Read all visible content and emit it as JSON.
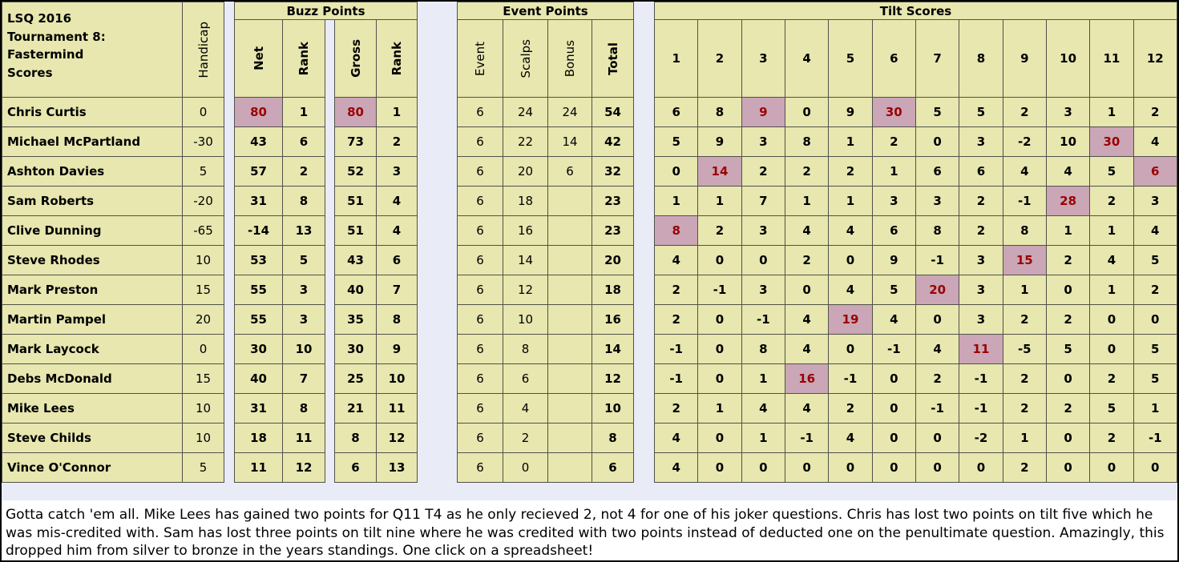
{
  "title": "LSQ 2016\nTournament 8:\nFastermind\nScores",
  "headers": {
    "handicap": "Handicap",
    "buzz": {
      "label": "Buzz Points",
      "net": "Net",
      "rank": "Rank",
      "gross": "Gross",
      "rank2": "Rank"
    },
    "event": {
      "label": "Event Points",
      "event": "Event",
      "scalps": "Scalps",
      "bonus": "Bonus",
      "total": "Total"
    },
    "tilt": {
      "label": "Tilt Scores",
      "cols": [
        "1",
        "2",
        "3",
        "4",
        "5",
        "6",
        "7",
        "8",
        "9",
        "10",
        "11",
        "12"
      ]
    }
  },
  "colors": {
    "cell_bg": "#e7e7af",
    "highlight_bg": "#caa6b6",
    "highlight_text": "#9b0000",
    "gap_bg": "#e9ecf6",
    "border": "#51514b"
  },
  "players": [
    {
      "name": "Chris Curtis",
      "handicap": "0",
      "buzz": [
        "80",
        "1",
        "80",
        "1"
      ],
      "buzz_hl": [
        0,
        2
      ],
      "event": [
        "6",
        "24",
        "24",
        "54"
      ],
      "tilt": [
        "6",
        "8",
        "9",
        "0",
        "9",
        "30",
        "5",
        "5",
        "2",
        "3",
        "1",
        "2"
      ],
      "tilt_hl": [
        2,
        5
      ]
    },
    {
      "name": "Michael McPartland",
      "handicap": "-30",
      "buzz": [
        "43",
        "6",
        "73",
        "2"
      ],
      "buzz_hl": [],
      "event": [
        "6",
        "22",
        "14",
        "42"
      ],
      "tilt": [
        "5",
        "9",
        "3",
        "8",
        "1",
        "2",
        "0",
        "3",
        "-2",
        "10",
        "30",
        "4"
      ],
      "tilt_hl": [
        10
      ]
    },
    {
      "name": "Ashton Davies",
      "handicap": "5",
      "buzz": [
        "57",
        "2",
        "52",
        "3"
      ],
      "buzz_hl": [],
      "event": [
        "6",
        "20",
        "6",
        "32"
      ],
      "tilt": [
        "0",
        "14",
        "2",
        "2",
        "2",
        "1",
        "6",
        "6",
        "4",
        "4",
        "5",
        "6"
      ],
      "tilt_hl": [
        1,
        11
      ]
    },
    {
      "name": "Sam Roberts",
      "handicap": "-20",
      "buzz": [
        "31",
        "8",
        "51",
        "4"
      ],
      "buzz_hl": [],
      "event": [
        "6",
        "18",
        "",
        "23"
      ],
      "tilt": [
        "1",
        "1",
        "7",
        "1",
        "1",
        "3",
        "3",
        "2",
        "-1",
        "28",
        "2",
        "3"
      ],
      "tilt_hl": [
        9
      ]
    },
    {
      "name": "Clive Dunning",
      "handicap": "-65",
      "buzz": [
        "-14",
        "13",
        "51",
        "4"
      ],
      "buzz_hl": [],
      "event": [
        "6",
        "16",
        "",
        "23"
      ],
      "tilt": [
        "8",
        "2",
        "3",
        "4",
        "4",
        "6",
        "8",
        "2",
        "8",
        "1",
        "1",
        "4"
      ],
      "tilt_hl": [
        0
      ]
    },
    {
      "name": "Steve Rhodes",
      "handicap": "10",
      "buzz": [
        "53",
        "5",
        "43",
        "6"
      ],
      "buzz_hl": [],
      "event": [
        "6",
        "14",
        "",
        "20"
      ],
      "tilt": [
        "4",
        "0",
        "0",
        "2",
        "0",
        "9",
        "-1",
        "3",
        "15",
        "2",
        "4",
        "5"
      ],
      "tilt_hl": [
        8
      ]
    },
    {
      "name": "Mark Preston",
      "handicap": "15",
      "buzz": [
        "55",
        "3",
        "40",
        "7"
      ],
      "buzz_hl": [],
      "event": [
        "6",
        "12",
        "",
        "18"
      ],
      "tilt": [
        "2",
        "-1",
        "3",
        "0",
        "4",
        "5",
        "20",
        "3",
        "1",
        "0",
        "1",
        "2"
      ],
      "tilt_hl": [
        6
      ]
    },
    {
      "name": "Martin Pampel",
      "handicap": "20",
      "buzz": [
        "55",
        "3",
        "35",
        "8"
      ],
      "buzz_hl": [],
      "event": [
        "6",
        "10",
        "",
        "16"
      ],
      "tilt": [
        "2",
        "0",
        "-1",
        "4",
        "19",
        "4",
        "0",
        "3",
        "2",
        "2",
        "0",
        "0"
      ],
      "tilt_hl": [
        4
      ]
    },
    {
      "name": "Mark Laycock",
      "handicap": "0",
      "buzz": [
        "30",
        "10",
        "30",
        "9"
      ],
      "buzz_hl": [],
      "event": [
        "6",
        "8",
        "",
        "14"
      ],
      "tilt": [
        "-1",
        "0",
        "8",
        "4",
        "0",
        "-1",
        "4",
        "11",
        "-5",
        "5",
        "0",
        "5"
      ],
      "tilt_hl": [
        7
      ]
    },
    {
      "name": "Debs McDonald",
      "handicap": "15",
      "buzz": [
        "40",
        "7",
        "25",
        "10"
      ],
      "buzz_hl": [],
      "event": [
        "6",
        "6",
        "",
        "12"
      ],
      "tilt": [
        "-1",
        "0",
        "1",
        "16",
        "-1",
        "0",
        "2",
        "-1",
        "2",
        "0",
        "2",
        "5"
      ],
      "tilt_hl": [
        3
      ]
    },
    {
      "name": "Mike Lees",
      "handicap": "10",
      "buzz": [
        "31",
        "8",
        "21",
        "11"
      ],
      "buzz_hl": [],
      "event": [
        "6",
        "4",
        "",
        "10"
      ],
      "tilt": [
        "2",
        "1",
        "4",
        "4",
        "2",
        "0",
        "-1",
        "-1",
        "2",
        "2",
        "5",
        "1"
      ],
      "tilt_hl": []
    },
    {
      "name": "Steve Childs",
      "handicap": "10",
      "buzz": [
        "18",
        "11",
        "8",
        "12"
      ],
      "buzz_hl": [],
      "event": [
        "6",
        "2",
        "",
        "8"
      ],
      "tilt": [
        "4",
        "0",
        "1",
        "-1",
        "4",
        "0",
        "0",
        "-2",
        "1",
        "0",
        "2",
        "-1"
      ],
      "tilt_hl": []
    },
    {
      "name": "Vince O'Connor",
      "handicap": "5",
      "buzz": [
        "11",
        "12",
        "6",
        "13"
      ],
      "buzz_hl": [],
      "event": [
        "6",
        "0",
        "",
        "6"
      ],
      "tilt": [
        "4",
        "0",
        "0",
        "0",
        "0",
        "0",
        "0",
        "0",
        "2",
        "0",
        "0",
        "0"
      ],
      "tilt_hl": []
    }
  ],
  "footer": "Gotta catch 'em all. Mike Lees has gained two points for Q11 T4 as he only recieved 2, not 4 for one of his joker questions. Chris has lost two points on tilt five which he was mis-credited with. Sam has lost three points on tilt nine where he was credited with two points instead of deducted one on the penultimate question. Amazingly, this dropped him from silver to bronze in the years standings. One click on a spreadsheet!"
}
